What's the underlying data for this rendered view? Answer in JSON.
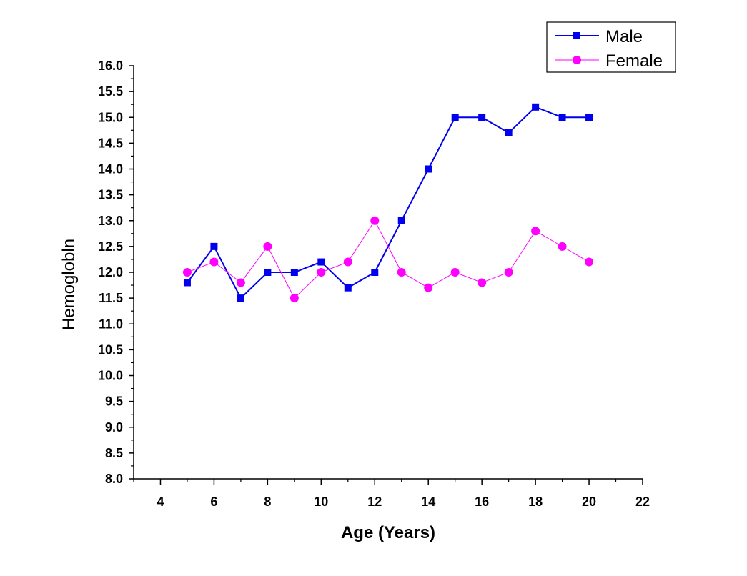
{
  "chart_data": {
    "type": "line",
    "xlabel": "Age (Years)",
    "ylabel": "Hemoglobln",
    "xlim": [
      3,
      22
    ],
    "ylim": [
      8.0,
      16.0
    ],
    "x_ticks": [
      4,
      6,
      8,
      10,
      12,
      14,
      16,
      18,
      20,
      22
    ],
    "y_ticks": [
      "8.0",
      "8.5",
      "9.0",
      "9.5",
      "10.0",
      "10.5",
      "11.0",
      "11.5",
      "12.0",
      "12.5",
      "13.0",
      "13.5",
      "14.0",
      "14.5",
      "15.0",
      "15.5",
      "16.0"
    ],
    "legend_position": "top-right",
    "series": [
      {
        "name": "Male",
        "color": "#0000ee",
        "marker": "square",
        "x": [
          5,
          6,
          7,
          8,
          9,
          10,
          11,
          12,
          13,
          14,
          15,
          16,
          17,
          18,
          19,
          20
        ],
        "values": [
          11.8,
          12.5,
          11.5,
          12.0,
          12.0,
          12.2,
          11.7,
          12.0,
          13.0,
          14.0,
          15.0,
          15.0,
          14.7,
          15.2,
          15.0,
          15.0
        ]
      },
      {
        "name": "Female",
        "color": "#ff00ff",
        "marker": "circle",
        "x": [
          5,
          6,
          7,
          8,
          9,
          10,
          11,
          12,
          13,
          14,
          15,
          16,
          17,
          18,
          19,
          20
        ],
        "values": [
          12.0,
          12.2,
          11.8,
          12.5,
          11.5,
          12.0,
          12.2,
          13.0,
          12.0,
          11.7,
          12.0,
          11.8,
          12.0,
          12.8,
          12.5,
          12.2
        ]
      }
    ]
  }
}
